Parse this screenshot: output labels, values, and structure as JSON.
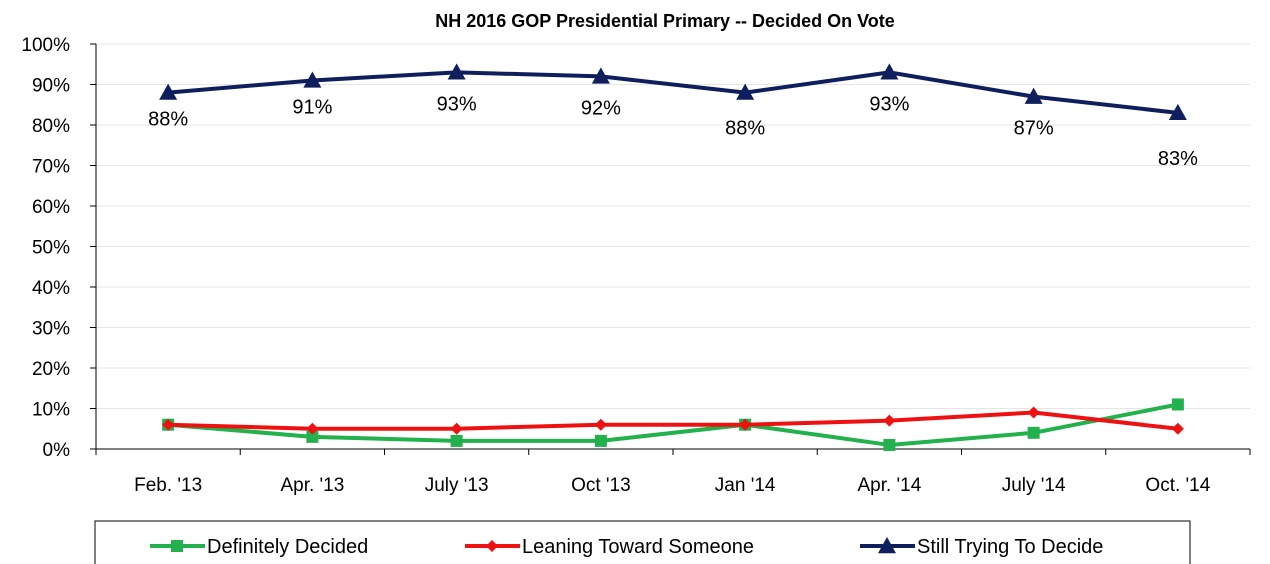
{
  "chart_data": {
    "type": "line",
    "title": "NH 2016 GOP Presidential Primary -- Decided On Vote",
    "xlabel": "",
    "ylabel": "",
    "categories": [
      "Feb. '13",
      "Apr. '13",
      "July '13",
      "Oct '13",
      "Jan '14",
      "Apr. '14",
      "July '14",
      "Oct. '14"
    ],
    "ylim": [
      0,
      100
    ],
    "yticks": [
      "0%",
      "10%",
      "20%",
      "30%",
      "40%",
      "50%",
      "60%",
      "70%",
      "80%",
      "90%",
      "100%"
    ],
    "grid": true,
    "legend_position": "bottom",
    "series": [
      {
        "name": "Definitely Decided",
        "color": "#22b14c",
        "marker": "square",
        "values": [
          6,
          3,
          2,
          2,
          6,
          1,
          4,
          11
        ]
      },
      {
        "name": "Leaning Toward Someone",
        "color": "#ee1111",
        "marker": "diamond",
        "values": [
          6,
          5,
          5,
          6,
          6,
          7,
          9,
          5
        ]
      },
      {
        "name": "Still Trying To Decide",
        "color": "#0f1f5e",
        "marker": "triangle",
        "values": [
          88,
          91,
          93,
          92,
          88,
          93,
          87,
          83
        ],
        "data_labels": [
          "88%",
          "91%",
          "93%",
          "92%",
          "88%",
          "93%",
          "87%",
          "83%"
        ]
      }
    ]
  }
}
